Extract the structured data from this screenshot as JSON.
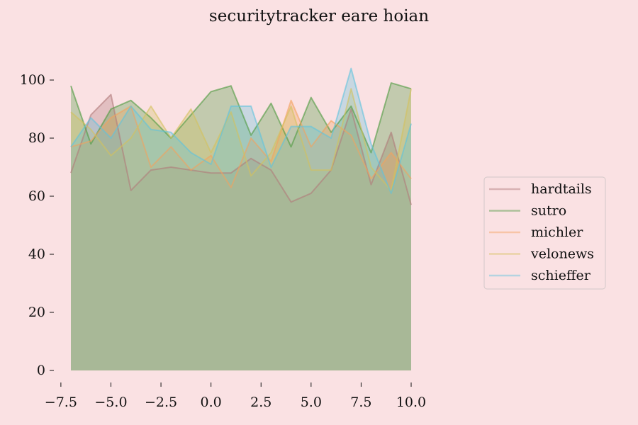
{
  "chart_data": {
    "type": "area",
    "title": "securitytracker eare hoian",
    "xlabel": "",
    "ylabel": "",
    "x": [
      -7,
      -6,
      -5,
      -4,
      -3,
      -2,
      -1,
      0,
      1,
      2,
      3,
      4,
      5,
      6,
      7,
      8,
      9,
      10
    ],
    "xlim": [
      -7,
      10
    ],
    "ylim": [
      0,
      110
    ],
    "x_ticks": [
      -7.5,
      -5.0,
      -2.5,
      0.0,
      2.5,
      5.0,
      7.5,
      10.0
    ],
    "x_tick_labels": [
      "−7.5",
      "−5.0",
      "−2.5",
      "0.0",
      "2.5",
      "5.0",
      "7.5",
      "10.0"
    ],
    "y_ticks": [
      0,
      20,
      40,
      60,
      80,
      100
    ],
    "y_tick_labels": [
      "0",
      "20",
      "40",
      "60",
      "80",
      "100"
    ],
    "grid": false,
    "legend_position": "center-right",
    "series": [
      {
        "name": "hardtails",
        "color": "#b07a7a",
        "values": [
          68,
          88,
          95,
          62,
          69,
          70,
          69,
          68,
          68,
          73,
          69,
          58,
          61,
          69,
          90,
          64,
          82,
          57
        ]
      },
      {
        "name": "sutro",
        "color": "#4d9a3e",
        "values": [
          98,
          78,
          90,
          93,
          87,
          80,
          88,
          96,
          98,
          81,
          92,
          77,
          94,
          82,
          91,
          75,
          99,
          97
        ]
      },
      {
        "name": "michler",
        "color": "#f3a15e",
        "values": [
          77,
          79,
          87,
          91,
          70,
          77,
          69,
          74,
          63,
          80,
          72,
          93,
          77,
          86,
          81,
          66,
          75,
          66
        ]
      },
      {
        "name": "velonews",
        "color": "#d4c25c",
        "values": [
          89,
          83,
          74,
          80,
          91,
          80,
          90,
          75,
          89,
          67,
          75,
          91,
          69,
          69,
          97,
          70,
          62,
          97
        ]
      },
      {
        "name": "schieffer",
        "color": "#5fc3de",
        "values": [
          77,
          87,
          80,
          91,
          83,
          82,
          75,
          71,
          91,
          91,
          70,
          84,
          84,
          80,
          104,
          78,
          61,
          85
        ]
      }
    ]
  }
}
